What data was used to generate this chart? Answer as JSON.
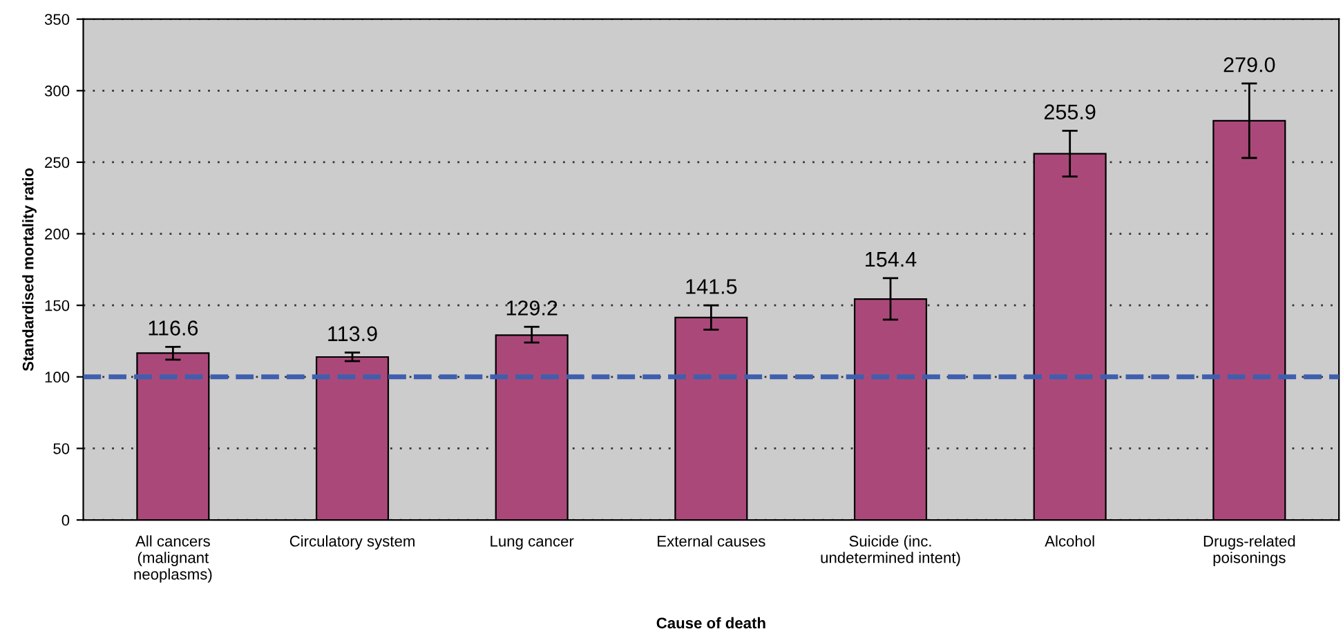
{
  "chart_data": {
    "type": "bar",
    "xlabel": "Cause of death",
    "ylabel": "Standardised mortality ratio",
    "categories": [
      "All cancers\n(malignant\nneoplasms)",
      "Circulatory system",
      "Lung cancer",
      "External causes",
      "Suicide (inc.\nundetermined intent)",
      "Alcohol",
      "Drugs-related\npoisonings"
    ],
    "values": [
      116.6,
      113.9,
      129.2,
      141.5,
      154.4,
      255.9,
      279.0
    ],
    "value_labels": [
      "116.6",
      "113.9",
      "129.2",
      "141.5",
      "154.4",
      "255.9",
      "279.0"
    ],
    "errors": [
      [
        112,
        121
      ],
      [
        111,
        117
      ],
      [
        124,
        135
      ],
      [
        133,
        150
      ],
      [
        140,
        169
      ],
      [
        240,
        272
      ],
      [
        253,
        305
      ]
    ],
    "color": "#aa4979",
    "ylim": [
      0,
      350
    ],
    "yticks": [
      0,
      50,
      100,
      150,
      200,
      250,
      300,
      350
    ],
    "grid": "y",
    "ref_lines": [
      {
        "axis": "y",
        "value": 100,
        "color": "#3f5fae",
        "line_style": "dashed"
      }
    ]
  }
}
